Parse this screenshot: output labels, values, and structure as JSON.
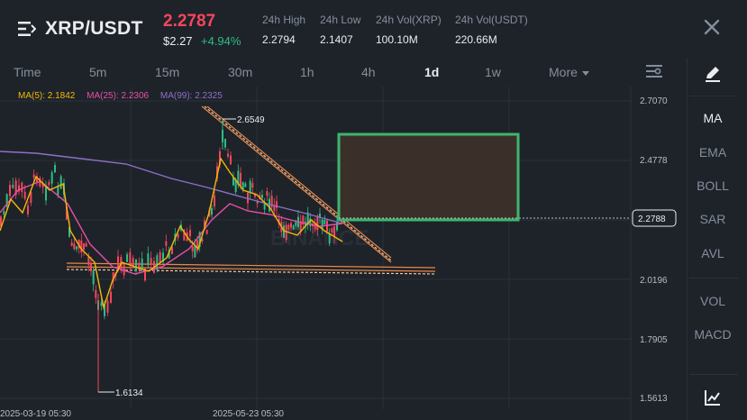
{
  "header": {
    "pair": "XRP/USDT",
    "price": "2.2787",
    "usd_price": "$2.27",
    "change": "+4.94%",
    "stats": [
      {
        "label": "24h High",
        "value": "2.2794"
      },
      {
        "label": "24h Low",
        "value": "2.1407"
      },
      {
        "label": "24h Vol(XRP)",
        "value": "100.10M"
      },
      {
        "label": "24h Vol(USDT)",
        "value": "220.66M"
      }
    ]
  },
  "intervals": [
    "Time",
    "5m",
    "15m",
    "30m",
    "1h",
    "4h",
    "1d",
    "1w"
  ],
  "active_interval": "1d",
  "more_label": "More",
  "ma_legend": {
    "ma5": "MA(5): 2.1842",
    "ma25": "MA(25): 2.2306",
    "ma99": "MA(99): 2.2325"
  },
  "chart": {
    "y_axis_ticks": [
      "2.7070",
      "2.4778",
      "2.2788",
      "2.0196",
      "1.7905",
      "1.5613"
    ],
    "x_axis_ticks": [
      "2025-03-19 05:30",
      "2025-05-23 05:30"
    ],
    "high_label": "2.6549",
    "low_label": "1.6134",
    "current_price_tag": "2.2788",
    "watermark": "BINANCE"
  },
  "sidebar": {
    "items": [
      "MA",
      "EMA",
      "BOLL",
      "SAR",
      "AVL",
      "VOL",
      "MACD"
    ],
    "active": "MA"
  },
  "colors": {
    "bg": "#1e2329",
    "up": "#2ebd85",
    "down": "#f6465d",
    "ma5": "#f0b90b",
    "ma25": "#e84fa8",
    "ma99": "#8d70c9",
    "trendline": "#e8874a",
    "box_border": "#3fb56d",
    "box_fill": "#3b2f2a"
  },
  "icons": [
    "menu-icon",
    "close-icon",
    "chart-settings-icon",
    "draw-pen-icon",
    "indicator-chart-icon"
  ]
}
